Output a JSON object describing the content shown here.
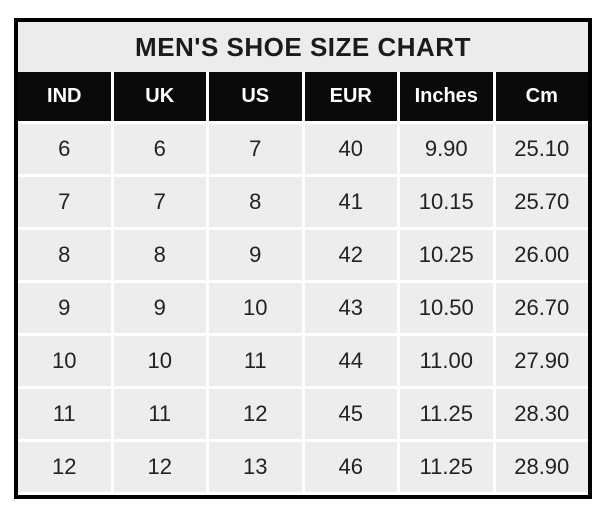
{
  "chart_data": {
    "type": "table",
    "title": "MEN'S SHOE SIZE CHART",
    "columns": [
      "IND",
      "UK",
      "US",
      "EUR",
      "Inches",
      "Cm"
    ],
    "rows": [
      [
        "6",
        "6",
        "7",
        "40",
        "9.90",
        "25.10"
      ],
      [
        "7",
        "7",
        "8",
        "41",
        "10.15",
        "25.70"
      ],
      [
        "8",
        "8",
        "9",
        "42",
        "10.25",
        "26.00"
      ],
      [
        "9",
        "9",
        "10",
        "43",
        "10.50",
        "26.70"
      ],
      [
        "10",
        "10",
        "11",
        "44",
        "11.00",
        "27.90"
      ],
      [
        "11",
        "11",
        "12",
        "45",
        "11.25",
        "28.30"
      ],
      [
        "12",
        "12",
        "13",
        "46",
        "11.25",
        "28.90"
      ]
    ],
    "layout": {
      "legend": "none",
      "grid": "white-gridlines",
      "header_position": "top"
    }
  },
  "colors": {
    "outer_border": "#000000",
    "title_bg": "#ececec",
    "title_text": "#1b1b1b",
    "header_bg": "#0a0a0a",
    "header_text": "#ffffff",
    "cell_bg": "#eeeded",
    "cell_text": "#222222",
    "gridline": "#ffffff"
  }
}
